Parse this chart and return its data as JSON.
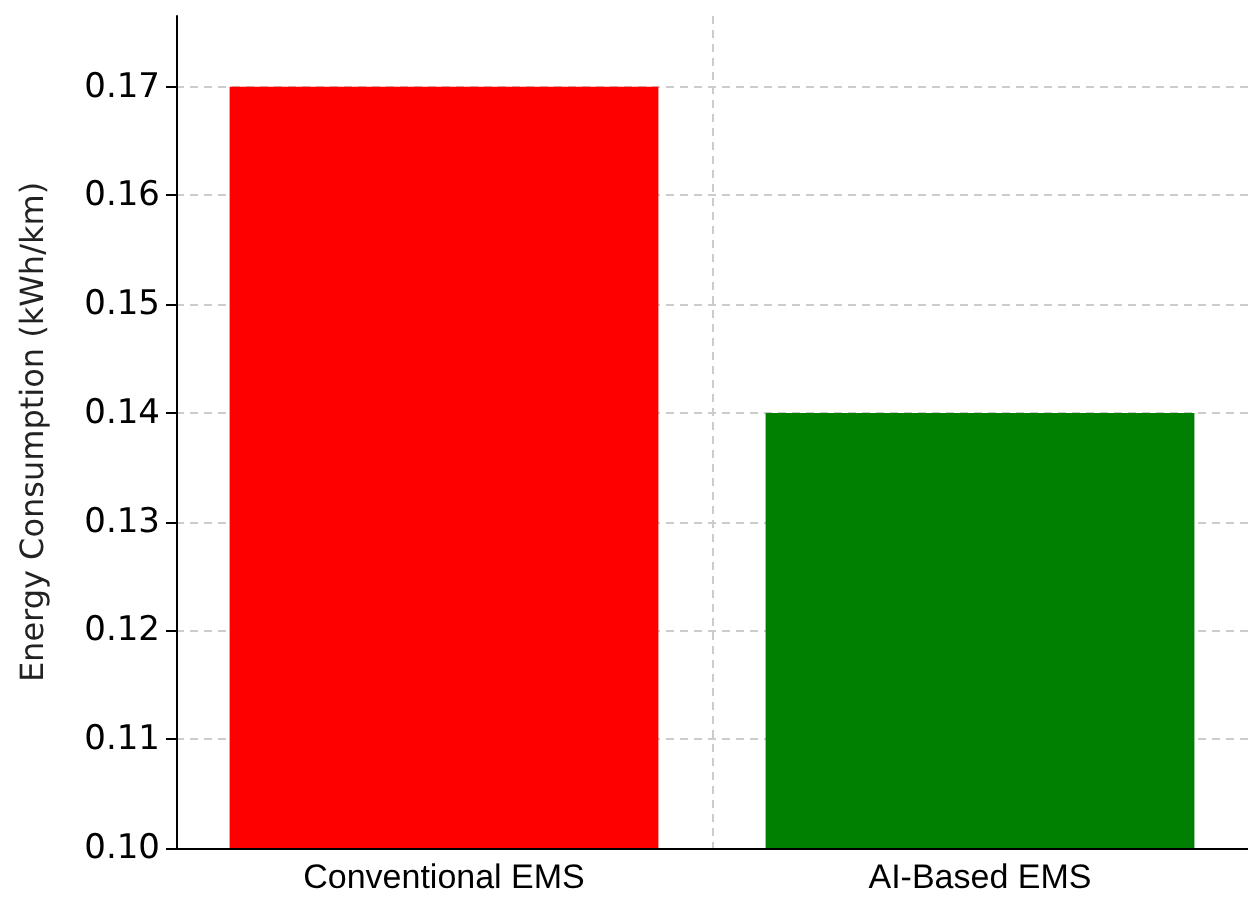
{
  "chart_data": {
    "type": "bar",
    "ylabel": "Energy Consumption (kWh/km)",
    "categories": [
      "Conventional EMS",
      "AI-Based EMS"
    ],
    "values": [
      0.17,
      0.14
    ],
    "colors": [
      "#ff0000",
      "#008000"
    ],
    "ylim": [
      0.1,
      0.1765
    ],
    "yticks": [
      {
        "value": 0.1,
        "label": "0.10"
      },
      0.11,
      0.12,
      0.13,
      0.14,
      0.15,
      0.16,
      0.17
    ],
    "grid": true
  }
}
